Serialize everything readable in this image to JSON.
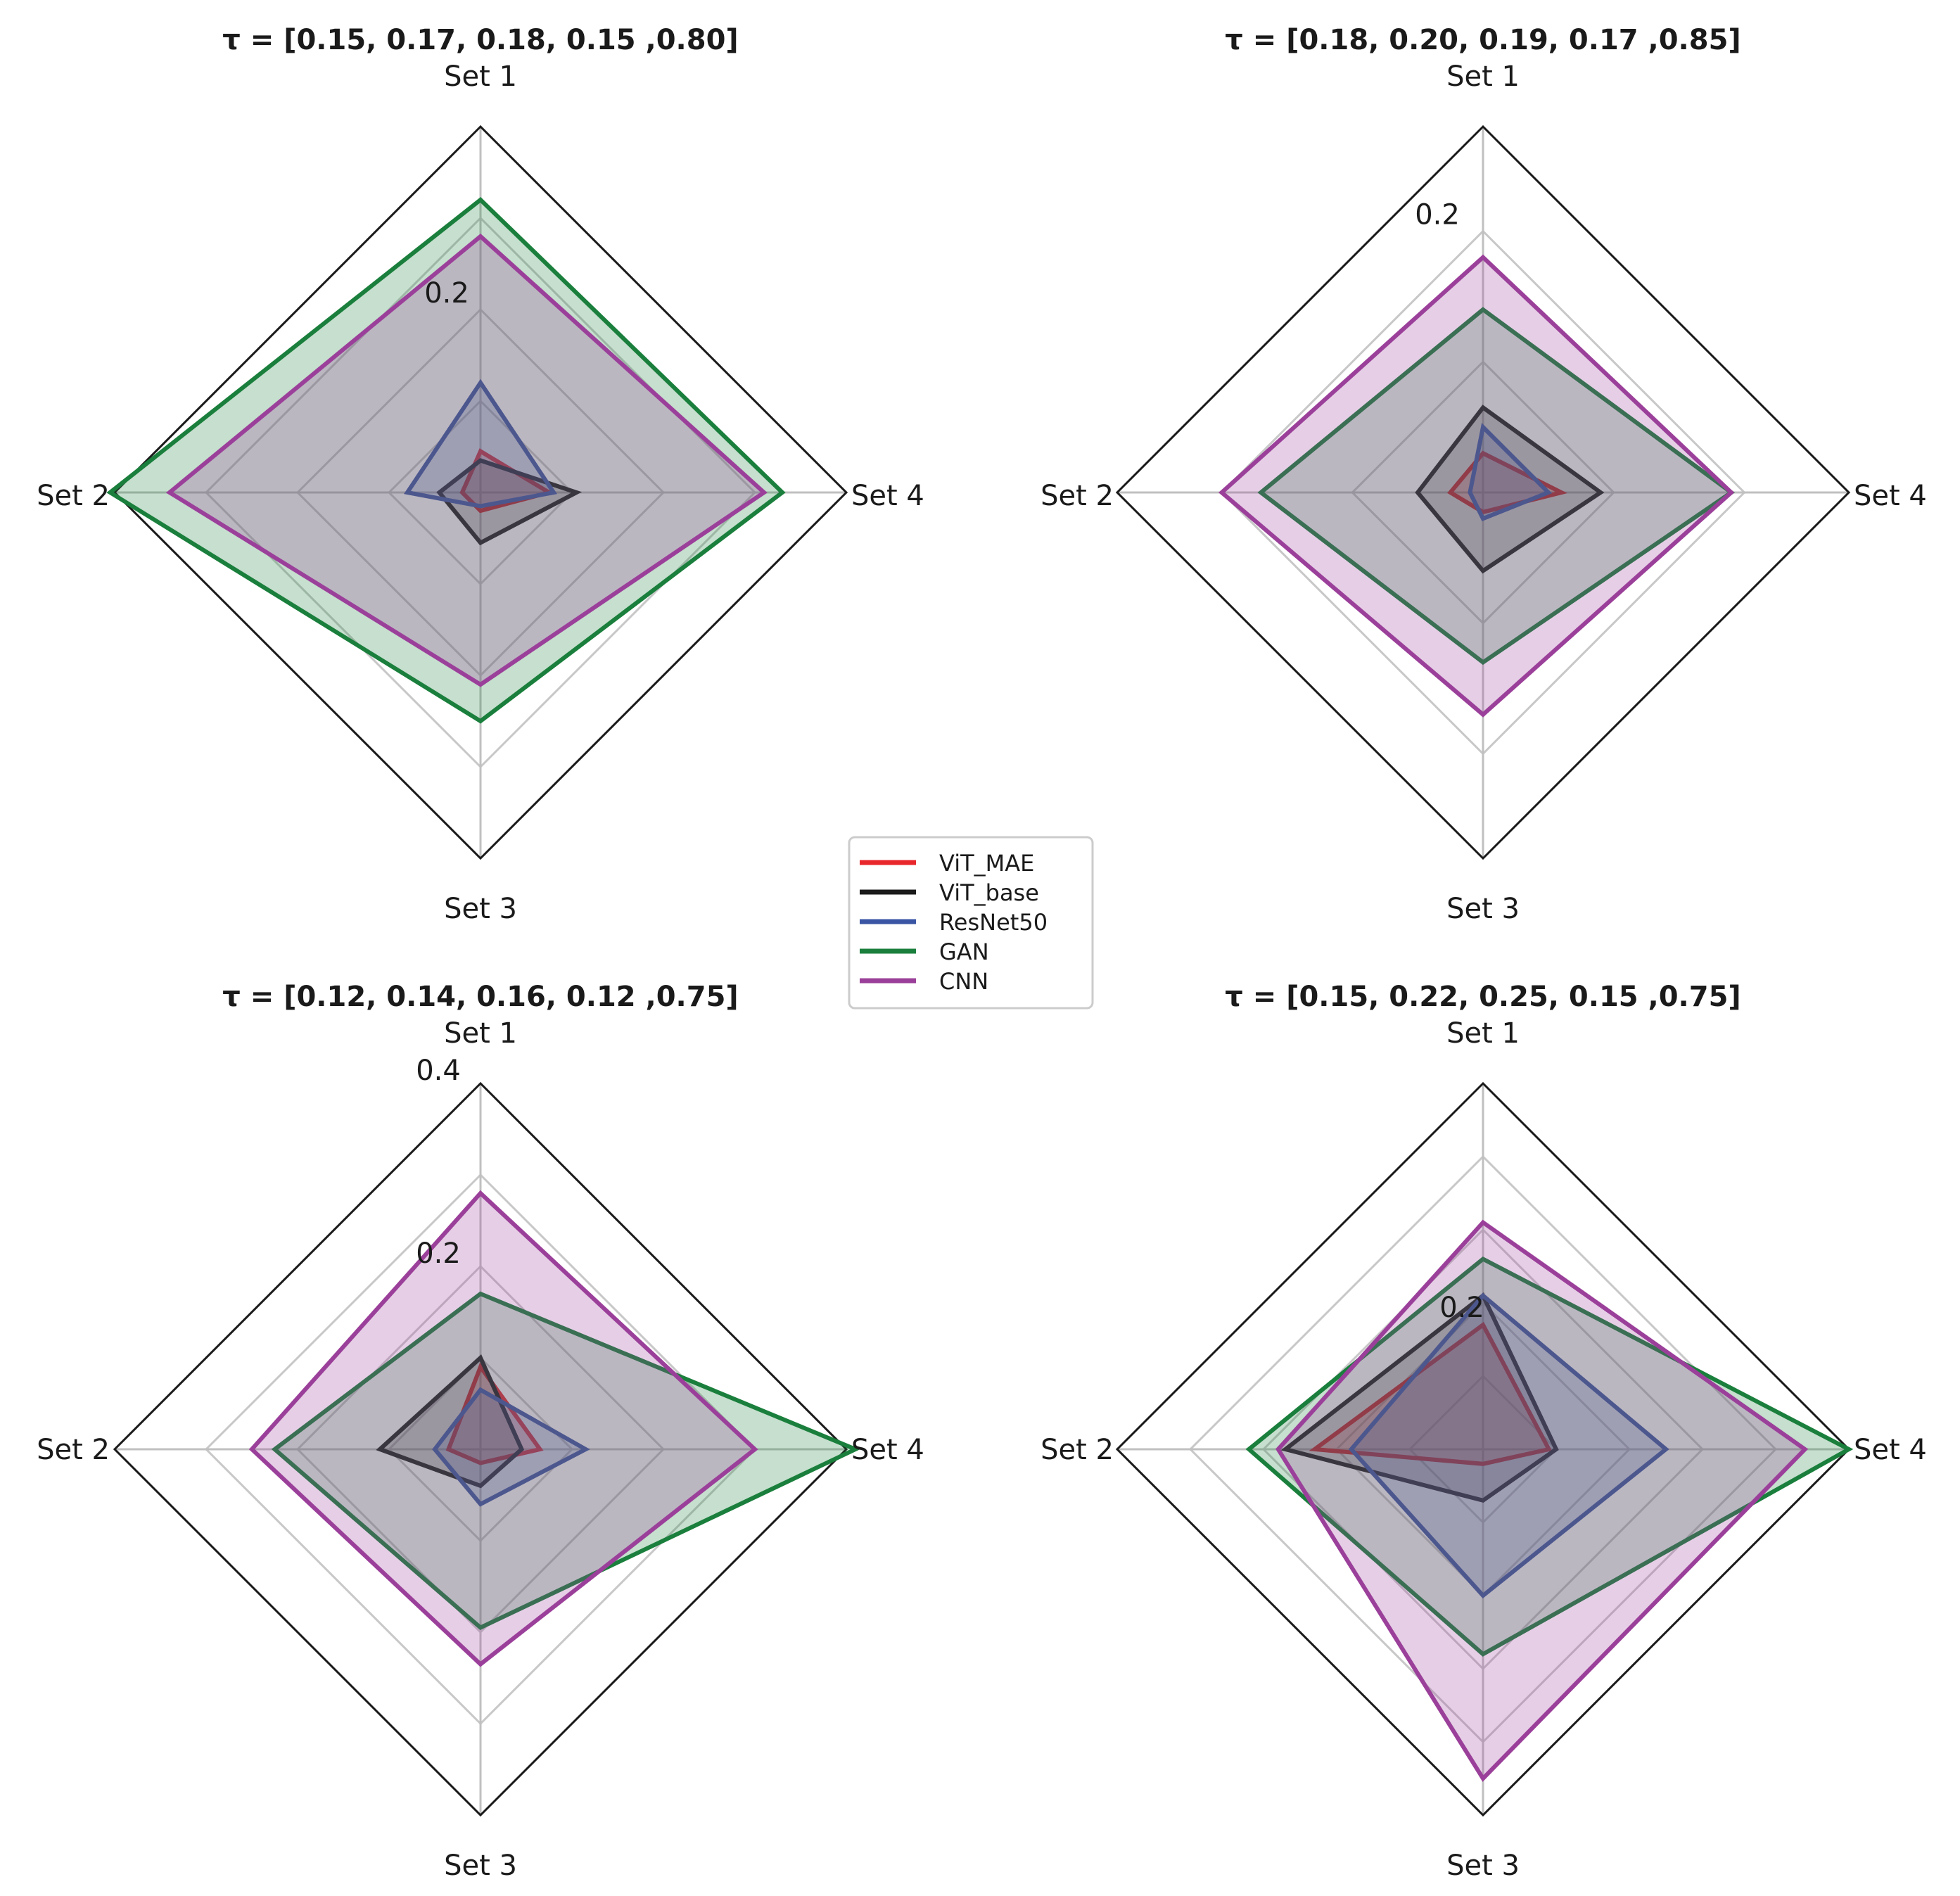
{
  "legend": {
    "entries": [
      {
        "name": "ViT_MAE",
        "color": "#e8272d"
      },
      {
        "name": "ViT_base",
        "color": "#1a1a1a"
      },
      {
        "name": "ResNet50",
        "color": "#3a55a4"
      },
      {
        "name": "GAN",
        "color": "#1a7f3c"
      },
      {
        "name": "CNN",
        "color": "#9b409a"
      }
    ]
  },
  "chart_data": [
    {
      "type": "radar",
      "title": "τ = [0.15, 0.17, 0.18, 0.15 ,0.80]",
      "axes": [
        "Set 1",
        "Set 2",
        "Set 3",
        "Set 4"
      ],
      "rmax": 0.4,
      "ticks": [
        0.2
      ],
      "series": [
        {
          "name": "ViT_MAE",
          "values": [
            0.045,
            0.02,
            0.02,
            0.075
          ],
          "color": "#e8272d",
          "filled": true
        },
        {
          "name": "ViT_base",
          "values": [
            0.035,
            0.045,
            0.055,
            0.105
          ],
          "color": "#1a1a1a",
          "filled": true
        },
        {
          "name": "ResNet50",
          "values": [
            0.12,
            0.08,
            0.015,
            0.08
          ],
          "color": "#3a55a4",
          "filled": true
        },
        {
          "name": "GAN",
          "values": [
            0.32,
            0.405,
            0.25,
            0.33
          ],
          "color": "#1a7f3c",
          "filled": true
        },
        {
          "name": "CNN",
          "values": [
            0.28,
            0.34,
            0.21,
            0.31
          ],
          "color": "#9b409a",
          "filled": true
        }
      ]
    },
    {
      "type": "radar",
      "title": "τ = [0.18, 0.20, 0.19, 0.17 ,0.85]",
      "axes": [
        "Set 1",
        "Set 2",
        "Set 3",
        "Set 4"
      ],
      "rmax": 0.28,
      "ticks": [
        0.2
      ],
      "series": [
        {
          "name": "ViT_MAE",
          "values": [
            0.03,
            0.025,
            0.015,
            0.06
          ],
          "color": "#e8272d",
          "filled": true
        },
        {
          "name": "ViT_base",
          "values": [
            0.065,
            0.05,
            0.06,
            0.09
          ],
          "color": "#1a1a1a",
          "filled": true
        },
        {
          "name": "ResNet50",
          "values": [
            0.05,
            0.01,
            0.02,
            0.05
          ],
          "color": "#3a55a4",
          "filled": true
        },
        {
          "name": "GAN",
          "values": [
            0.14,
            0.17,
            0.13,
            0.19
          ],
          "color": "#1a7f3c",
          "filled": true
        },
        {
          "name": "CNN",
          "values": [
            0.18,
            0.2,
            0.17,
            0.19
          ],
          "color": "#9b409a",
          "filled": true
        }
      ]
    },
    {
      "type": "radar",
      "title": "τ = [0.12, 0.14, 0.16, 0.12 ,0.75]",
      "axes": [
        "Set 1",
        "Set 2",
        "Set 3",
        "Set 4"
      ],
      "rmax": 0.4,
      "ticks": [
        0.2,
        0.4
      ],
      "series": [
        {
          "name": "ViT_MAE",
          "values": [
            0.09,
            0.035,
            0.015,
            0.065
          ],
          "color": "#e8272d",
          "filled": true
        },
        {
          "name": "ViT_base",
          "values": [
            0.1,
            0.11,
            0.04,
            0.045
          ],
          "color": "#1a1a1a",
          "filled": true
        },
        {
          "name": "ResNet50",
          "values": [
            0.065,
            0.05,
            0.06,
            0.115
          ],
          "color": "#3a55a4",
          "filled": true
        },
        {
          "name": "GAN",
          "values": [
            0.17,
            0.225,
            0.195,
            0.41
          ],
          "color": "#1a7f3c",
          "filled": true
        },
        {
          "name": "CNN",
          "values": [
            0.28,
            0.25,
            0.235,
            0.3
          ],
          "color": "#9b409a",
          "filled": true
        }
      ]
    },
    {
      "type": "radar",
      "title": "τ = [0.15, 0.22, 0.25, 0.15 ,0.75]",
      "axes": [
        "Set 1",
        "Set 2",
        "Set 3",
        "Set 4"
      ],
      "rmax": 0.5,
      "ticks": [
        0.2
      ],
      "series": [
        {
          "name": "ViT_MAE",
          "values": [
            0.17,
            0.23,
            0.02,
            0.09
          ],
          "color": "#e8272d",
          "filled": true
        },
        {
          "name": "ViT_base",
          "values": [
            0.21,
            0.27,
            0.07,
            0.1
          ],
          "color": "#1a1a1a",
          "filled": true
        },
        {
          "name": "ResNet50",
          "values": [
            0.21,
            0.18,
            0.2,
            0.25
          ],
          "color": "#3a55a4",
          "filled": true
        },
        {
          "name": "GAN",
          "values": [
            0.26,
            0.32,
            0.28,
            0.5
          ],
          "color": "#1a7f3c",
          "filled": true
        },
        {
          "name": "CNN",
          "values": [
            0.31,
            0.28,
            0.45,
            0.44
          ],
          "color": "#9b409a",
          "filled": true
        }
      ]
    }
  ]
}
